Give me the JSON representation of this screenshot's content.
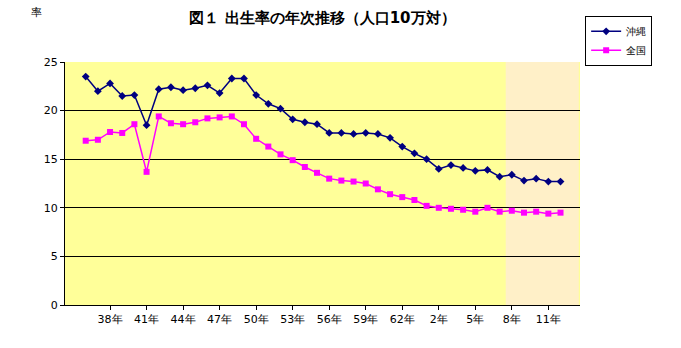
{
  "chart_data": {
    "type": "line",
    "title": "図１ 出生率の年次推移（人口10万対）",
    "y_label": "率",
    "categories": [
      null,
      null,
      "38年",
      null,
      null,
      "41年",
      null,
      null,
      "44年",
      null,
      null,
      "47年",
      null,
      null,
      "50年",
      null,
      null,
      "53年",
      null,
      null,
      "56年",
      null,
      null,
      "59年",
      null,
      null,
      "62年",
      null,
      null,
      "2年",
      null,
      null,
      "5年",
      null,
      null,
      "8年",
      null,
      null,
      "11年",
      null
    ],
    "series": [
      {
        "name": "沖縄",
        "color": "#000080",
        "marker": "diamond",
        "values": [
          23.5,
          22.0,
          22.8,
          21.5,
          21.6,
          18.5,
          22.2,
          22.4,
          22.1,
          22.3,
          22.6,
          21.8,
          23.3,
          23.3,
          21.6,
          20.7,
          20.2,
          19.1,
          18.8,
          18.6,
          17.7,
          17.7,
          17.6,
          17.7,
          17.6,
          17.2,
          16.3,
          15.6,
          15.0,
          14.0,
          14.4,
          14.1,
          13.8,
          13.9,
          13.2,
          13.4,
          12.8,
          13.0,
          12.7,
          12.7
        ]
      },
      {
        "name": "全国",
        "color": "#FF00FF",
        "marker": "square",
        "values": [
          16.9,
          17.0,
          17.8,
          17.7,
          18.6,
          13.7,
          19.4,
          18.7,
          18.6,
          18.8,
          19.2,
          19.3,
          19.4,
          18.6,
          17.1,
          16.3,
          15.5,
          14.9,
          14.2,
          13.6,
          13.0,
          12.8,
          12.7,
          12.5,
          11.9,
          11.4,
          11.1,
          10.8,
          10.2,
          10.0,
          9.9,
          9.8,
          9.6,
          10.0,
          9.6,
          9.7,
          9.5,
          9.6,
          9.4,
          9.5
        ]
      }
    ],
    "ylim": [
      0,
      25
    ],
    "yticks": [
      0,
      5,
      10,
      15,
      20,
      25
    ],
    "grid": true,
    "legend": "top right"
  }
}
